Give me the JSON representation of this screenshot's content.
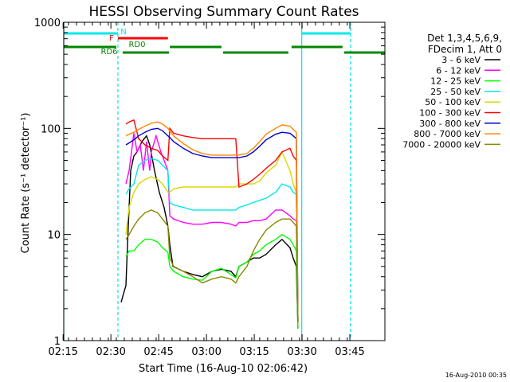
{
  "chart_data": {
    "type": "line",
    "title": "HESSI Observing Summary Count Rates",
    "xlabel": "Start Time (16-Aug-10 02:06:42)",
    "ylabel": "Count Rate (s⁻¹ detector⁻¹)",
    "footer": "16-Aug-2010 00:35",
    "yscale": "log",
    "xlim": [
      8.5,
      109.3
    ],
    "ylim": [
      1,
      1000
    ],
    "x_unit": "minutes since 02:06:42",
    "x_ticks": [
      {
        "label": "02:15",
        "x": 8.3
      },
      {
        "label": "02:30",
        "x": 23.3
      },
      {
        "label": "02:45",
        "x": 38.3
      },
      {
        "label": "03:00",
        "x": 53.3
      },
      {
        "label": "03:15",
        "x": 68.3
      },
      {
        "label": "03:30",
        "x": 83.3
      },
      {
        "label": "03:45",
        "x": 98.3
      }
    ],
    "y_ticks": [
      {
        "label": "1",
        "y": 1
      },
      {
        "label": "10",
        "y": 10
      },
      {
        "label": "100",
        "y": 100
      },
      {
        "label": "1000",
        "y": 1000
      }
    ],
    "legend_header": [
      "Det 1,3,4,5,6,9,",
      "FDecim 1, Att 0"
    ],
    "series": [
      {
        "name": "3 - 6 keV",
        "color": "#000000",
        "points": [
          [
            26.5,
            2.3
          ],
          [
            27.3,
            2.8
          ],
          [
            28,
            3.3
          ],
          [
            28.5,
            8
          ],
          [
            29.5,
            40
          ],
          [
            30.5,
            55
          ],
          [
            31.5,
            60
          ],
          [
            33,
            75
          ],
          [
            34.5,
            85
          ],
          [
            35.5,
            70
          ],
          [
            37,
            40
          ],
          [
            38.5,
            25
          ],
          [
            40,
            18
          ],
          [
            41.2,
            12
          ],
          [
            41.8,
            8
          ],
          [
            42.8,
            5
          ],
          [
            46,
            4.5
          ],
          [
            49,
            4.2
          ],
          [
            52,
            4
          ],
          [
            55,
            4.5
          ],
          [
            58,
            4.7
          ],
          [
            61,
            4.5
          ],
          [
            62.5,
            4
          ],
          [
            63.5,
            5
          ],
          [
            66,
            5.5
          ],
          [
            68,
            6
          ],
          [
            70,
            6
          ],
          [
            72,
            6.5
          ],
          [
            75,
            8
          ],
          [
            77,
            9
          ],
          [
            79.5,
            7.5
          ],
          [
            80.5,
            6
          ],
          [
            81.5,
            5
          ],
          [
            82,
            1.3
          ]
        ]
      },
      {
        "name": "6 - 12 keV",
        "color": "#ff00ff",
        "points": [
          [
            28,
            30
          ],
          [
            29,
            40
          ],
          [
            30.5,
            90
          ],
          [
            31.5,
            60
          ],
          [
            32.5,
            70
          ],
          [
            33.5,
            40
          ],
          [
            34.5,
            75
          ],
          [
            35.5,
            40
          ],
          [
            36,
            60
          ],
          [
            37.5,
            85
          ],
          [
            39,
            60
          ],
          [
            40,
            50
          ],
          [
            41.2,
            40
          ],
          [
            41.8,
            15
          ],
          [
            43,
            14
          ],
          [
            46,
            13
          ],
          [
            49,
            12.5
          ],
          [
            52,
            12.5
          ],
          [
            55,
            13
          ],
          [
            58,
            13
          ],
          [
            61,
            12.5
          ],
          [
            62.5,
            12
          ],
          [
            63.5,
            13
          ],
          [
            66,
            13
          ],
          [
            68,
            13.5
          ],
          [
            70,
            13.5
          ],
          [
            72,
            14
          ],
          [
            75,
            17
          ],
          [
            77,
            17
          ],
          [
            79.5,
            15
          ],
          [
            80.5,
            14
          ],
          [
            81.5,
            13.5
          ],
          [
            82,
            1.5
          ]
        ]
      },
      {
        "name": "12 - 25 keV",
        "color": "#00ff00",
        "points": [
          [
            28,
            6.2
          ],
          [
            29,
            7
          ],
          [
            30.5,
            7
          ],
          [
            32,
            8
          ],
          [
            34,
            9
          ],
          [
            36,
            9
          ],
          [
            38,
            8.5
          ],
          [
            39.5,
            7.5
          ],
          [
            41.2,
            6.8
          ],
          [
            41.8,
            5
          ],
          [
            43,
            4.5
          ],
          [
            46,
            4
          ],
          [
            49,
            3.8
          ],
          [
            52,
            3.7
          ],
          [
            55,
            4.5
          ],
          [
            58,
            4.8
          ],
          [
            61,
            4.2
          ],
          [
            62.5,
            3.9
          ],
          [
            63.5,
            5
          ],
          [
            66,
            5.5
          ],
          [
            68,
            6.5
          ],
          [
            70,
            7
          ],
          [
            72,
            8
          ],
          [
            75,
            9
          ],
          [
            77,
            10
          ],
          [
            79.5,
            9
          ],
          [
            80.5,
            8
          ],
          [
            81.5,
            7
          ],
          [
            82,
            1.3
          ]
        ]
      },
      {
        "name": "25 - 50 keV",
        "color": "#00e8e8",
        "points": [
          [
            28,
            24
          ],
          [
            29,
            27
          ],
          [
            30.5,
            30
          ],
          [
            32,
            45
          ],
          [
            34,
            50
          ],
          [
            36,
            52
          ],
          [
            38,
            50
          ],
          [
            39.5,
            45
          ],
          [
            41.2,
            40
          ],
          [
            41.8,
            20
          ],
          [
            43,
            19
          ],
          [
            46,
            18
          ],
          [
            49,
            17
          ],
          [
            52,
            17
          ],
          [
            55,
            17
          ],
          [
            58,
            17
          ],
          [
            61,
            17
          ],
          [
            62.5,
            17
          ],
          [
            63.5,
            18
          ],
          [
            66,
            19
          ],
          [
            68,
            20
          ],
          [
            70,
            21
          ],
          [
            72,
            22
          ],
          [
            75,
            25
          ],
          [
            77,
            30
          ],
          [
            79.5,
            28
          ],
          [
            80.5,
            25
          ],
          [
            81.5,
            24
          ],
          [
            82,
            1.5
          ]
        ]
      },
      {
        "name": "50 - 100 keV",
        "color": "#d8d800",
        "points": [
          [
            28,
            10
          ],
          [
            29,
            18
          ],
          [
            30.5,
            25
          ],
          [
            32,
            30
          ],
          [
            34,
            33
          ],
          [
            36,
            35
          ],
          [
            38,
            33
          ],
          [
            39.5,
            30
          ],
          [
            41.2,
            25
          ],
          [
            41.8,
            25
          ],
          [
            43,
            27
          ],
          [
            46,
            28
          ],
          [
            49,
            28
          ],
          [
            52,
            28
          ],
          [
            55,
            28
          ],
          [
            58,
            28
          ],
          [
            61,
            28
          ],
          [
            62.5,
            28
          ],
          [
            63.5,
            30
          ],
          [
            66,
            30
          ],
          [
            68,
            30
          ],
          [
            70,
            32
          ],
          [
            72,
            38
          ],
          [
            75,
            45
          ],
          [
            77,
            60
          ],
          [
            79.5,
            40
          ],
          [
            80.5,
            30
          ],
          [
            81.5,
            25
          ],
          [
            82,
            1.5
          ]
        ]
      },
      {
        "name": "100 - 300 keV",
        "color": "#ff0000",
        "points": [
          [
            28,
            110
          ],
          [
            29,
            115
          ],
          [
            30.5,
            120
          ],
          [
            32,
            80
          ],
          [
            34,
            70
          ],
          [
            36,
            65
          ],
          [
            38,
            62
          ],
          [
            39.5,
            55
          ],
          [
            41.2,
            50
          ],
          [
            41.8,
            100
          ],
          [
            43,
            90
          ],
          [
            46,
            85
          ],
          [
            49,
            82
          ],
          [
            52,
            80
          ],
          [
            55,
            80
          ],
          [
            58,
            80
          ],
          [
            61,
            80
          ],
          [
            62.5,
            80
          ],
          [
            63.5,
            28
          ],
          [
            66,
            30
          ],
          [
            68,
            33
          ],
          [
            70,
            37
          ],
          [
            72,
            42
          ],
          [
            75,
            50
          ],
          [
            77,
            60
          ],
          [
            79.5,
            65
          ],
          [
            80.5,
            55
          ],
          [
            81.5,
            50
          ],
          [
            82,
            1.5
          ]
        ]
      },
      {
        "name": "300 - 800 keV",
        "color": "#0000cc",
        "points": [
          [
            28,
            70
          ],
          [
            29,
            73
          ],
          [
            30.5,
            78
          ],
          [
            32,
            85
          ],
          [
            34,
            92
          ],
          [
            36,
            98
          ],
          [
            38,
            100
          ],
          [
            39.5,
            95
          ],
          [
            41.2,
            85
          ],
          [
            41.8,
            82
          ],
          [
            43,
            75
          ],
          [
            46,
            65
          ],
          [
            49,
            58
          ],
          [
            52,
            55
          ],
          [
            55,
            53
          ],
          [
            58,
            53
          ],
          [
            61,
            53
          ],
          [
            62.5,
            53
          ],
          [
            63.5,
            53
          ],
          [
            66,
            55
          ],
          [
            68,
            60
          ],
          [
            70,
            68
          ],
          [
            72,
            78
          ],
          [
            75,
            88
          ],
          [
            77,
            92
          ],
          [
            79.5,
            90
          ],
          [
            80.5,
            85
          ],
          [
            81.5,
            80
          ],
          [
            82,
            1.5
          ]
        ]
      },
      {
        "name": "800 - 7000 keV",
        "color": "#ff8800",
        "points": [
          [
            28,
            85
          ],
          [
            29,
            88
          ],
          [
            30.5,
            92
          ],
          [
            32,
            98
          ],
          [
            34,
            105
          ],
          [
            36,
            112
          ],
          [
            38,
            115
          ],
          [
            39.5,
            110
          ],
          [
            41.2,
            100
          ],
          [
            41.8,
            95
          ],
          [
            43,
            85
          ],
          [
            46,
            72
          ],
          [
            49,
            63
          ],
          [
            52,
            58
          ],
          [
            55,
            56
          ],
          [
            58,
            56
          ],
          [
            61,
            56
          ],
          [
            62.5,
            56
          ],
          [
            63.5,
            56
          ],
          [
            66,
            58
          ],
          [
            68,
            65
          ],
          [
            70,
            75
          ],
          [
            72,
            88
          ],
          [
            75,
            100
          ],
          [
            77,
            108
          ],
          [
            79.5,
            105
          ],
          [
            80.5,
            98
          ],
          [
            81.5,
            92
          ],
          [
            82,
            1.5
          ]
        ]
      },
      {
        "name": "7000 - 20000 keV",
        "color": "#888800",
        "points": [
          [
            28,
            9
          ],
          [
            29,
            10
          ],
          [
            30.5,
            12
          ],
          [
            32,
            14
          ],
          [
            34,
            16
          ],
          [
            36,
            17
          ],
          [
            38,
            16
          ],
          [
            39.5,
            14
          ],
          [
            41.2,
            12
          ],
          [
            41.8,
            6
          ],
          [
            43,
            5
          ],
          [
            46,
            4.5
          ],
          [
            49,
            4
          ],
          [
            52,
            3.5
          ],
          [
            55,
            3.8
          ],
          [
            58,
            4
          ],
          [
            61,
            3.8
          ],
          [
            62.5,
            3.5
          ],
          [
            63.5,
            4
          ],
          [
            66,
            5
          ],
          [
            68,
            7
          ],
          [
            70,
            9
          ],
          [
            72,
            11
          ],
          [
            75,
            13
          ],
          [
            77,
            14
          ],
          [
            79.5,
            14
          ],
          [
            80.5,
            13
          ],
          [
            81.5,
            12
          ],
          [
            82,
            1.5
          ]
        ]
      }
    ],
    "flag_bars": [
      {
        "label": "N",
        "color": "#00e8e8",
        "segments": [
          [
            8.5,
            25.5
          ],
          [
            83.2,
            98.5
          ]
        ]
      },
      {
        "label": "F",
        "color": "#ff0000",
        "segments": [
          [
            25.5,
            41.2
          ]
        ]
      },
      {
        "label": "RD0",
        "color": "#008800",
        "segments": []
      },
      {
        "label": "RD6",
        "color": "#008800",
        "segments": [
          [
            8.5,
            25
          ],
          [
            27,
            41.5
          ],
          [
            41.8,
            58
          ],
          [
            58.5,
            79
          ],
          [
            80,
            96
          ],
          [
            96.5,
            109.3
          ]
        ]
      }
    ],
    "vlines": [
      {
        "x": 8.5,
        "color": "#00e8e8",
        "style": "solid"
      },
      {
        "x": 25.5,
        "color": "#00e8e8",
        "style": "dashed"
      },
      {
        "x": 83.2,
        "color": "#00e8e8",
        "style": "solid"
      },
      {
        "x": 98.5,
        "color": "#00e8e8",
        "style": "dashed"
      }
    ],
    "grid": false,
    "legend_position": "right"
  }
}
